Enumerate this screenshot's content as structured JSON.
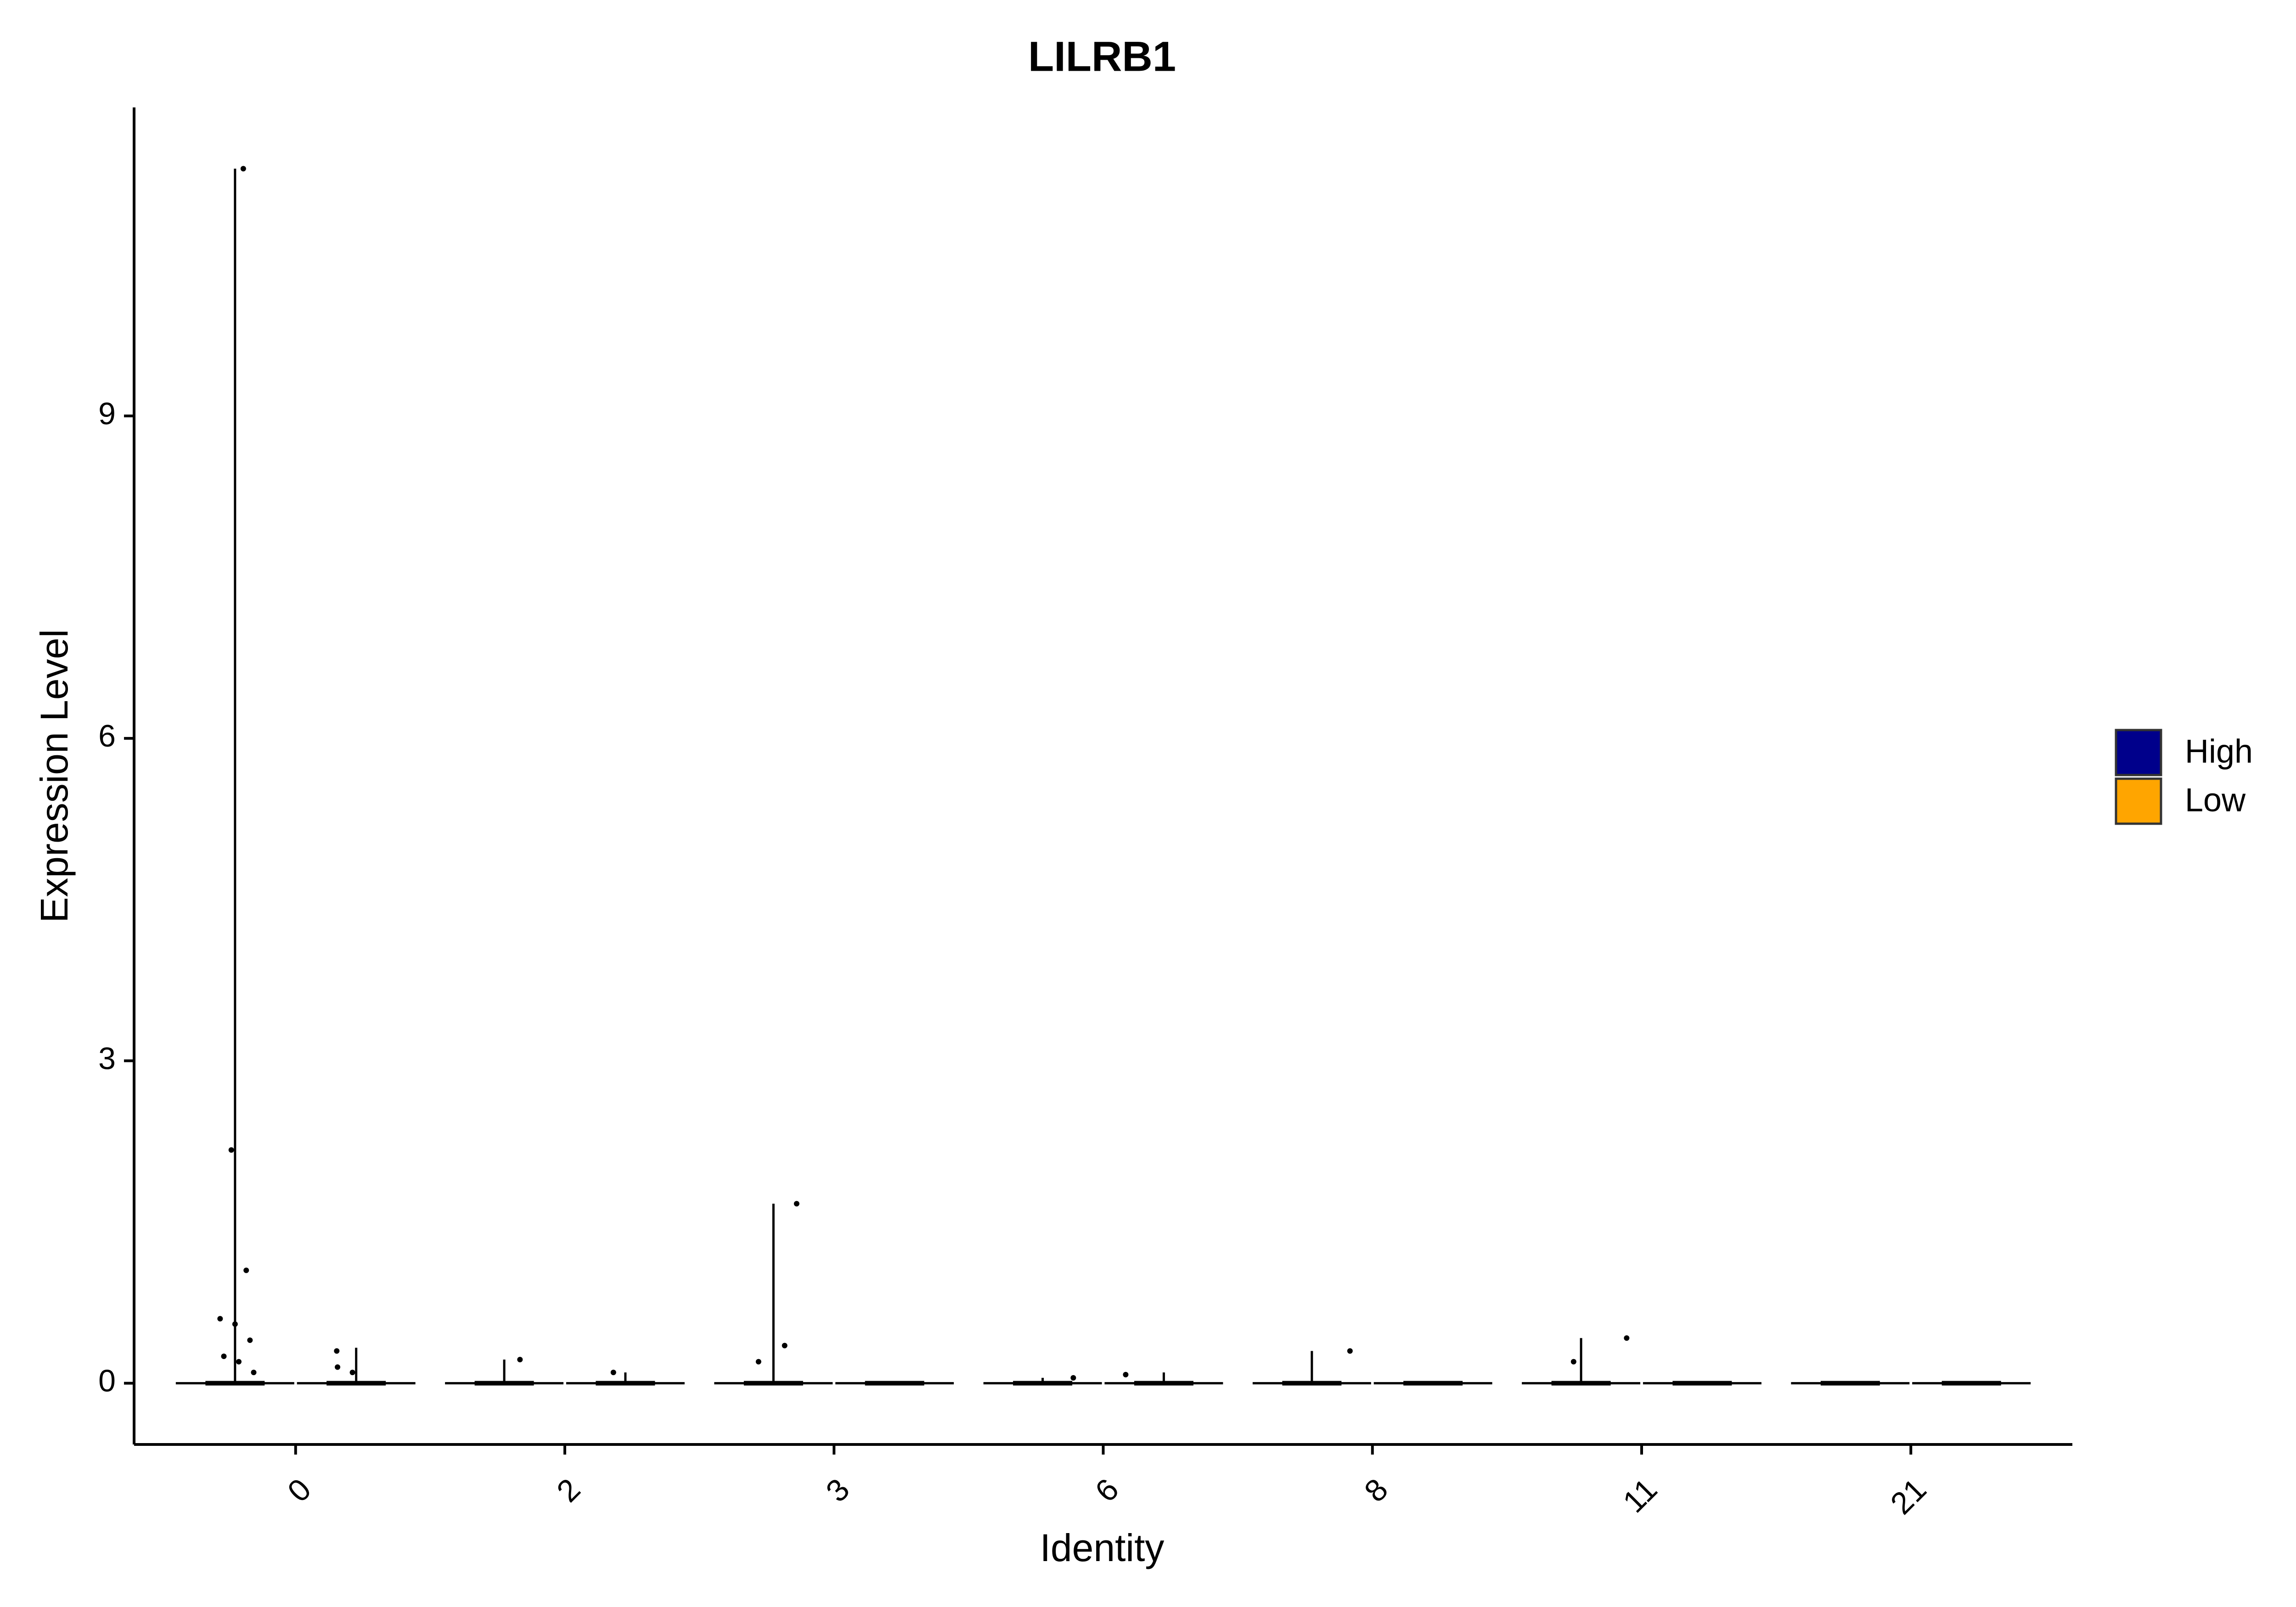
{
  "chart_data": {
    "type": "violin",
    "title": "LILRB1",
    "x_label": "Identity",
    "y_label": "Expression Level",
    "categories": [
      "0",
      "2",
      "3",
      "6",
      "8",
      "11",
      "21"
    ],
    "series": [
      {
        "name": "High",
        "color": "#00008B",
        "values": [
          11.3,
          0.22,
          1.67,
          0.05,
          0.3,
          0.42,
          0
        ],
        "points": [
          [
            11.3,
            2.17,
            1.05,
            0.6,
            0.55,
            0.4,
            0.25,
            0.2,
            0.1
          ],
          [
            0.22
          ],
          [
            1.67,
            0.35,
            0.2
          ],
          [
            0.05
          ],
          [
            0.3
          ],
          [
            0.42,
            0.2
          ],
          []
        ]
      },
      {
        "name": "Low",
        "color": "#FFA500",
        "values": [
          0.33,
          0.1,
          0,
          0.1,
          0,
          0,
          0
        ],
        "points": [
          [
            0.3,
            0.15,
            0.1
          ],
          [
            0.1
          ],
          [],
          [
            0.08
          ],
          [],
          [],
          []
        ]
      }
    ],
    "ylim": [
      -0.57,
      11.87
    ],
    "yticks": [
      0,
      3,
      6,
      9
    ],
    "grid": false,
    "legend": "right"
  }
}
